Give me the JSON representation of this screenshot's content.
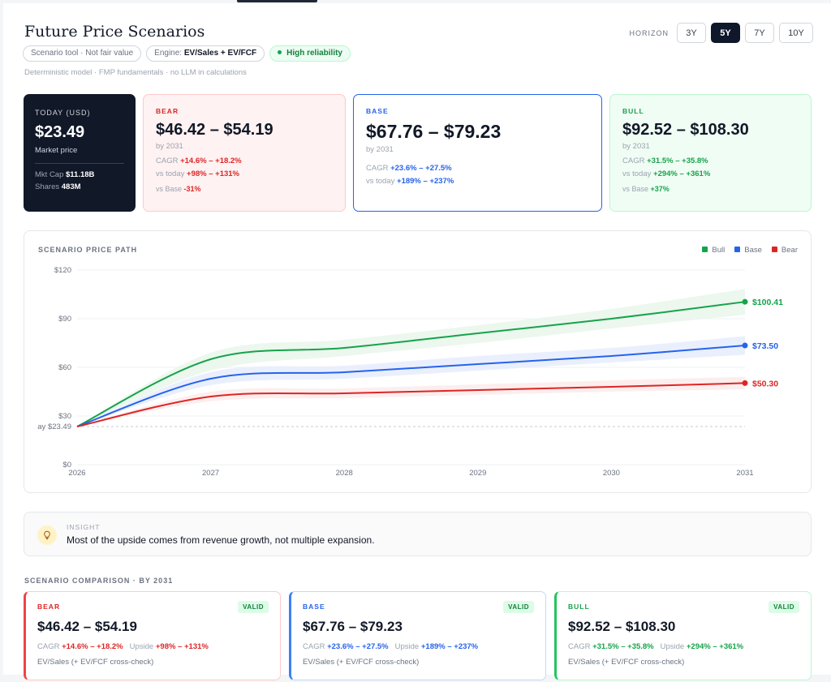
{
  "header": {
    "title": "Future Price Scenarios",
    "chips": {
      "scenario": "Scenario tool · Not fair value",
      "engine_label": "Engine:",
      "engine_value": "EV/Sales + EV/FCF",
      "reliability": "High reliability"
    },
    "note": "Deterministic model · FMP fundamentals · no LLM in calculations",
    "horizon": {
      "label": "HORIZON",
      "options": [
        "3Y",
        "5Y",
        "7Y",
        "10Y"
      ],
      "selected": "5Y"
    }
  },
  "today": {
    "label": "TODAY (USD)",
    "price": "$23.49",
    "sub": "Market price",
    "mktcap_label": "Mkt Cap",
    "mktcap": "$11.18B",
    "shares_label": "Shares",
    "shares": "483M"
  },
  "scenarios": {
    "bear": {
      "label": "BEAR",
      "range": "$46.42 – $54.19",
      "by": "by 2031",
      "cagr_label": "CAGR",
      "cagr": "+14.6% – +18.2%",
      "vs_today_label": "vs today",
      "vs_today": "+98% – +131%",
      "vs_base_label": "vs Base",
      "vs_base": "-31%"
    },
    "base": {
      "label": "BASE",
      "range": "$67.76 – $79.23",
      "by": "by 2031",
      "cagr_label": "CAGR",
      "cagr": "+23.6% – +27.5%",
      "vs_today_label": "vs today",
      "vs_today": "+189% – +237%"
    },
    "bull": {
      "label": "BULL",
      "range": "$92.52 – $108.30",
      "by": "by 2031",
      "cagr_label": "CAGR",
      "cagr": "+31.5% – +35.8%",
      "vs_today_label": "vs today",
      "vs_today": "+294% – +361%",
      "vs_base_label": "vs Base",
      "vs_base": "+37%"
    }
  },
  "chart_data": {
    "type": "line",
    "title": "SCENARIO PRICE PATH",
    "x": [
      2026,
      2027,
      2028,
      2029,
      2030,
      2031
    ],
    "ylim": [
      0,
      120
    ],
    "yticks": [
      "$0",
      "$30",
      "$60",
      "$90",
      "$120"
    ],
    "yticks_values": [
      0,
      30,
      60,
      90,
      120
    ],
    "today_line": {
      "value": 23.49,
      "label": "ay $23.49"
    },
    "legend": [
      "Bull",
      "Base",
      "Bear"
    ],
    "series": [
      {
        "name": "Bull",
        "color": "#16a34a",
        "band": "#eaf6ec",
        "values": [
          23.49,
          65,
          72,
          81,
          90,
          100.41
        ],
        "upper": [
          23.49,
          69,
          77,
          86,
          96,
          108.3
        ],
        "lower": [
          23.49,
          58,
          67,
          75,
          84,
          92.52
        ],
        "end_label": "$100.41"
      },
      {
        "name": "Base",
        "color": "#2563eb",
        "band": "#e8edfd",
        "values": [
          23.49,
          53,
          57,
          62,
          67,
          73.5
        ],
        "upper": [
          23.49,
          57,
          61,
          67,
          72,
          79.23
        ],
        "lower": [
          23.49,
          49,
          53,
          58,
          63,
          67.76
        ],
        "end_label": "$73.50"
      },
      {
        "name": "Bear",
        "color": "#dc2626",
        "band": "#fdecec",
        "values": [
          23.49,
          42,
          44,
          46,
          48,
          50.3
        ],
        "upper": [
          23.49,
          45,
          47,
          49.5,
          52,
          54.19
        ],
        "lower": [
          23.49,
          39,
          41,
          43,
          45,
          46.42
        ],
        "end_label": "$50.30"
      }
    ]
  },
  "insight": {
    "label": "INSIGHT",
    "text": "Most of the upside comes from revenue growth, not multiple expansion."
  },
  "comparison": {
    "title": "SCENARIO COMPARISON · BY 2031",
    "cards": {
      "bear": {
        "label": "BEAR",
        "badge": "VALID",
        "range": "$46.42 – $54.19",
        "cagr_label": "CAGR",
        "cagr": "+14.6% – +18.2%",
        "upside_label": "Upside",
        "upside": "+98% – +131%",
        "method": "EV/Sales (+ EV/FCF cross-check)"
      },
      "base": {
        "label": "BASE",
        "badge": "VALID",
        "range": "$67.76 – $79.23",
        "cagr_label": "CAGR",
        "cagr": "+23.6% – +27.5%",
        "upside_label": "Upside",
        "upside": "+189% – +237%",
        "method": "EV/Sales (+ EV/FCF cross-check)"
      },
      "bull": {
        "label": "BULL",
        "badge": "VALID",
        "range": "$92.52 – $108.30",
        "cagr_label": "CAGR",
        "cagr": "+31.5% – +35.8%",
        "upside_label": "Upside",
        "upside": "+294% – +361%",
        "method": "EV/Sales (+ EV/FCF cross-check)"
      }
    }
  }
}
